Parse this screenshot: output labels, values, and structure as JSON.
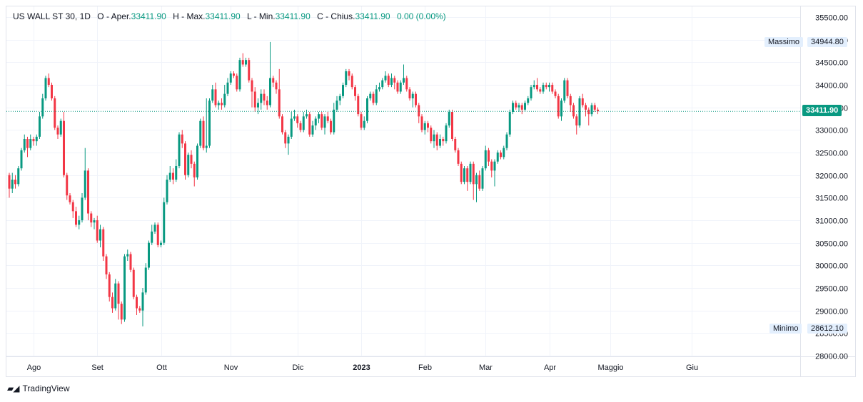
{
  "legend": {
    "symbol": "US WALL ST 30, 1D",
    "open_label": "O - Aper.",
    "open_value": "33411.90",
    "high_label": "H - Max.",
    "high_value": "33411.90",
    "low_label": "L - Min.",
    "low_value": "33411.90",
    "close_label": "C - Chius.",
    "close_value": "33411.90",
    "change": "0.00 (0.00%)"
  },
  "markers": {
    "high_label": "Massimo",
    "high_value": "34944.80",
    "low_label": "Minimo",
    "low_value": "28612.10",
    "last_price": "33411.90"
  },
  "brand": {
    "name": "TradingView"
  },
  "colors": {
    "up": "#089981",
    "down": "#f23645",
    "last_price_bg": "#089981",
    "badge_bg": "#e3effd"
  },
  "chart_data": {
    "type": "candlestick",
    "ylim": [
      28000,
      35500
    ],
    "y_ticks": [
      "35500.00",
      "35000.00",
      "34500.00",
      "34000.00",
      "33500.00",
      "33000.00",
      "32500.00",
      "32000.00",
      "31500.00",
      "31000.00",
      "30500.00",
      "30000.00",
      "29500.00",
      "29000.00",
      "28500.00",
      "28000.00"
    ],
    "x_ticks": [
      {
        "label": "Ago",
        "index": 8
      },
      {
        "label": "Set",
        "index": 29
      },
      {
        "label": "Ott",
        "index": 50
      },
      {
        "label": "Nov",
        "index": 73
      },
      {
        "label": "Dic",
        "index": 95
      },
      {
        "label": "2023",
        "index": 116
      },
      {
        "label": "Feb",
        "index": 137
      },
      {
        "label": "Mar",
        "index": 157
      },
      {
        "label": "Apr",
        "index": 178
      },
      {
        "label": "Maggio",
        "index": 198
      },
      {
        "label": "Giu",
        "index": 225
      }
    ],
    "grid": true,
    "last_price": 33411.9,
    "candles": [
      [
        32000,
        31700,
        32050,
        31500
      ],
      [
        31700,
        31900,
        32050,
        31600
      ],
      [
        31900,
        31800,
        32000,
        31700
      ],
      [
        31800,
        32150,
        32200,
        31750
      ],
      [
        32150,
        32550,
        32600,
        32100
      ],
      [
        32550,
        32800,
        32900,
        32500
      ],
      [
        32800,
        32600,
        32850,
        32400
      ],
      [
        32600,
        32800,
        32900,
        32550
      ],
      [
        32800,
        32750,
        32850,
        32650
      ],
      [
        32750,
        32850,
        32900,
        32650
      ],
      [
        32850,
        33300,
        33400,
        32800
      ],
      [
        33300,
        33700,
        33800,
        33250
      ],
      [
        33700,
        34150,
        34200,
        33650
      ],
      [
        34150,
        34000,
        34250,
        33950
      ],
      [
        34000,
        33700,
        34050,
        33650
      ],
      [
        33700,
        33050,
        33750,
        33000
      ],
      [
        33050,
        32900,
        33100,
        32800
      ],
      [
        32900,
        33200,
        33250,
        32850
      ],
      [
        33200,
        32000,
        33400,
        31950
      ],
      [
        32000,
        31550,
        32050,
        31450
      ],
      [
        31550,
        31400,
        31600,
        31350
      ],
      [
        31400,
        31200,
        31450,
        31050
      ],
      [
        31200,
        30900,
        31300,
        30850
      ],
      [
        30900,
        31000,
        31100,
        30800
      ],
      [
        31000,
        31500,
        31600,
        30950
      ],
      [
        31500,
        32100,
        32600,
        31450
      ],
      [
        32100,
        31150,
        32150,
        31000
      ],
      [
        31150,
        30950,
        31200,
        30850
      ],
      [
        30950,
        31000,
        31050,
        30800
      ],
      [
        31000,
        30550,
        31100,
        30500
      ],
      [
        30550,
        30800,
        30900,
        30400
      ],
      [
        30800,
        30200,
        30850,
        30100
      ],
      [
        30200,
        29800,
        30250,
        29700
      ],
      [
        29800,
        29300,
        29850,
        29200
      ],
      [
        29300,
        29050,
        29400,
        28950
      ],
      [
        29050,
        29600,
        29700,
        29000
      ],
      [
        29600,
        29150,
        29650,
        28800
      ],
      [
        29150,
        28800,
        29200,
        28700
      ],
      [
        28800,
        30200,
        30250,
        28750
      ],
      [
        30200,
        30250,
        30350,
        30100
      ],
      [
        30250,
        29900,
        30300,
        29850
      ],
      [
        29900,
        29300,
        29950,
        29250
      ],
      [
        29300,
        29050,
        29350,
        28900
      ],
      [
        29050,
        29000,
        29100,
        28950
      ],
      [
        29000,
        29400,
        29500,
        28650
      ],
      [
        29400,
        29950,
        30050,
        29350
      ],
      [
        29950,
        30500,
        30550,
        29900
      ],
      [
        30500,
        30750,
        30900,
        30450
      ],
      [
        30750,
        30900,
        30950,
        30700
      ],
      [
        30900,
        30450,
        30950,
        30400
      ],
      [
        30450,
        30500,
        30550,
        30400
      ],
      [
        30500,
        31400,
        31500,
        30450
      ],
      [
        31400,
        31900,
        32000,
        31350
      ],
      [
        31900,
        32050,
        32200,
        31850
      ],
      [
        32050,
        31900,
        32150,
        31800
      ],
      [
        31900,
        32200,
        32350,
        31850
      ],
      [
        32200,
        32900,
        32950,
        32150
      ],
      [
        32900,
        32700,
        33000,
        32600
      ],
      [
        32700,
        32000,
        32750,
        31900
      ],
      [
        32000,
        32450,
        32500,
        31950
      ],
      [
        32450,
        32250,
        32550,
        32150
      ],
      [
        32250,
        31950,
        32300,
        31750
      ],
      [
        31950,
        32650,
        32700,
        31900
      ],
      [
        32650,
        33200,
        33250,
        32600
      ],
      [
        33200,
        32600,
        33300,
        32550
      ],
      [
        32600,
        32650,
        33700,
        32500
      ],
      [
        32650,
        33650,
        33700,
        32600
      ],
      [
        33650,
        33900,
        34000,
        33600
      ],
      [
        33900,
        33550,
        34050,
        33500
      ],
      [
        33550,
        33600,
        33650,
        33450
      ],
      [
        33600,
        33550,
        33700,
        33450
      ],
      [
        33550,
        33800,
        34000,
        33500
      ],
      [
        33800,
        34050,
        34150,
        33750
      ],
      [
        34050,
        34250,
        34300,
        34000
      ],
      [
        34250,
        34200,
        34300,
        34150
      ],
      [
        34200,
        33900,
        34250,
        33850
      ],
      [
        33900,
        34550,
        34600,
        33850
      ],
      [
        34550,
        34450,
        34700,
        34400
      ],
      [
        34450,
        34550,
        34600,
        34400
      ],
      [
        34550,
        34100,
        34600,
        34050
      ],
      [
        34100,
        33850,
        34150,
        33500
      ],
      [
        33850,
        33500,
        33950,
        33400
      ],
      [
        33500,
        33600,
        33700,
        33350
      ],
      [
        33600,
        33800,
        33900,
        33450
      ],
      [
        33800,
        33650,
        33900,
        33550
      ],
      [
        33650,
        33550,
        33750,
        33450
      ],
      [
        33550,
        34150,
        34950,
        33500
      ],
      [
        34150,
        34050,
        34200,
        33950
      ],
      [
        34050,
        33900,
        34100,
        33800
      ],
      [
        33900,
        33300,
        34350,
        33250
      ],
      [
        33300,
        32950,
        33350,
        32900
      ],
      [
        32950,
        32700,
        33000,
        32600
      ],
      [
        32700,
        32850,
        32900,
        32450
      ],
      [
        32850,
        33250,
        33400,
        32800
      ],
      [
        33250,
        33300,
        33450,
        33200
      ],
      [
        33300,
        33150,
        33350,
        33050
      ],
      [
        33150,
        33000,
        33200,
        32950
      ],
      [
        33000,
        33300,
        33400,
        32950
      ],
      [
        33300,
        33350,
        33450,
        33250
      ],
      [
        33350,
        32900,
        33400,
        32850
      ],
      [
        32900,
        33100,
        33200,
        32850
      ],
      [
        33100,
        33250,
        33300,
        33000
      ],
      [
        33250,
        33350,
        33400,
        33150
      ],
      [
        33350,
        33050,
        33400,
        33000
      ],
      [
        33050,
        33300,
        33350,
        32900
      ],
      [
        33300,
        33200,
        33400,
        33150
      ],
      [
        33200,
        32950,
        33250,
        32900
      ],
      [
        32950,
        33450,
        33600,
        32900
      ],
      [
        33450,
        33650,
        33750,
        33400
      ],
      [
        33650,
        33750,
        33800,
        33550
      ],
      [
        33750,
        34000,
        34050,
        33700
      ],
      [
        34000,
        34300,
        34350,
        33950
      ],
      [
        34300,
        34200,
        34350,
        34100
      ],
      [
        34200,
        33950,
        34250,
        33900
      ],
      [
        33950,
        33750,
        34000,
        33650
      ],
      [
        33750,
        33350,
        33800,
        33300
      ],
      [
        33350,
        33050,
        33400,
        33000
      ],
      [
        33050,
        33200,
        33300,
        33000
      ],
      [
        33200,
        33700,
        33750,
        33150
      ],
      [
        33700,
        33800,
        33850,
        33650
      ],
      [
        33800,
        33600,
        33850,
        33550
      ],
      [
        33600,
        33900,
        34000,
        33550
      ],
      [
        33900,
        33950,
        34050,
        33850
      ],
      [
        33950,
        34100,
        34150,
        33900
      ],
      [
        34100,
        34200,
        34300,
        34050
      ],
      [
        34200,
        34000,
        34250,
        33950
      ],
      [
        34000,
        34150,
        34250,
        33950
      ],
      [
        34150,
        34050,
        34200,
        33900
      ],
      [
        34050,
        33850,
        34100,
        33800
      ],
      [
        33850,
        34050,
        34100,
        33800
      ],
      [
        34050,
        34150,
        34450,
        34000
      ],
      [
        34150,
        33900,
        34200,
        33850
      ],
      [
        33900,
        33700,
        33950,
        33650
      ],
      [
        33700,
        33800,
        33850,
        33500
      ],
      [
        33800,
        33550,
        33850,
        33500
      ],
      [
        33550,
        33300,
        33600,
        33150
      ],
      [
        33300,
        33000,
        33350,
        32950
      ],
      [
        33000,
        33150,
        33200,
        32900
      ],
      [
        33150,
        33050,
        33200,
        32950
      ],
      [
        33050,
        32750,
        33100,
        32700
      ],
      [
        32750,
        32900,
        33000,
        32600
      ],
      [
        32900,
        32650,
        32950,
        32550
      ],
      [
        32650,
        32800,
        32900,
        32600
      ],
      [
        32800,
        32750,
        32850,
        32650
      ],
      [
        32750,
        33100,
        33150,
        32700
      ],
      [
        33100,
        33400,
        33450,
        33050
      ],
      [
        33400,
        32800,
        33450,
        32750
      ],
      [
        32800,
        32550,
        32850,
        32500
      ],
      [
        32550,
        32250,
        32600,
        32200
      ],
      [
        32250,
        31850,
        32300,
        31800
      ],
      [
        31850,
        32150,
        32200,
        31800
      ],
      [
        32150,
        31850,
        32200,
        31650
      ],
      [
        31850,
        32250,
        32300,
        31800
      ],
      [
        32250,
        31800,
        32300,
        31450
      ],
      [
        31800,
        32000,
        32050,
        31400
      ],
      [
        32000,
        31700,
        32100,
        31650
      ],
      [
        31700,
        32150,
        32200,
        31650
      ],
      [
        32150,
        32550,
        32650,
        32100
      ],
      [
        32550,
        32300,
        32600,
        32200
      ],
      [
        32300,
        32100,
        32350,
        31950
      ],
      [
        32100,
        32300,
        32350,
        31750
      ],
      [
        32300,
        32500,
        32550,
        32250
      ],
      [
        32500,
        32400,
        32550,
        32350
      ],
      [
        32400,
        32600,
        32650,
        32350
      ],
      [
        32600,
        32900,
        32950,
        32550
      ],
      [
        32900,
        33400,
        33450,
        32850
      ],
      [
        33400,
        33600,
        33650,
        33350
      ],
      [
        33600,
        33500,
        33650,
        33450
      ],
      [
        33500,
        33550,
        33600,
        33400
      ],
      [
        33550,
        33450,
        33600,
        33350
      ],
      [
        33450,
        33600,
        33650,
        33400
      ],
      [
        33600,
        33700,
        33750,
        33550
      ],
      [
        33700,
        33950,
        34000,
        33650
      ],
      [
        33950,
        34000,
        34100,
        33900
      ],
      [
        34000,
        33900,
        34150,
        33850
      ],
      [
        33900,
        33850,
        33950,
        33800
      ],
      [
        33850,
        34000,
        34050,
        33800
      ],
      [
        34000,
        33950,
        34050,
        33900
      ],
      [
        33950,
        34000,
        34050,
        33850
      ],
      [
        34000,
        33850,
        34050,
        33800
      ],
      [
        33850,
        33750,
        33900,
        33700
      ],
      [
        33750,
        33300,
        33800,
        33250
      ],
      [
        33300,
        33650,
        33700,
        33200
      ],
      [
        33650,
        34100,
        34150,
        33600
      ],
      [
        34100,
        33750,
        34150,
        33700
      ],
      [
        33750,
        33550,
        33800,
        33400
      ],
      [
        33550,
        33300,
        33600,
        33250
      ],
      [
        33300,
        33100,
        33350,
        32900
      ],
      [
        33100,
        33700,
        33750,
        33050
      ],
      [
        33700,
        33550,
        33800,
        33500
      ],
      [
        33550,
        33450,
        33600,
        33300
      ],
      [
        33450,
        33350,
        33500,
        33100
      ],
      [
        33350,
        33550,
        33600,
        33300
      ],
      [
        33550,
        33450,
        33600,
        33400
      ],
      [
        33450,
        33411.9,
        33500,
        33350
      ]
    ]
  }
}
